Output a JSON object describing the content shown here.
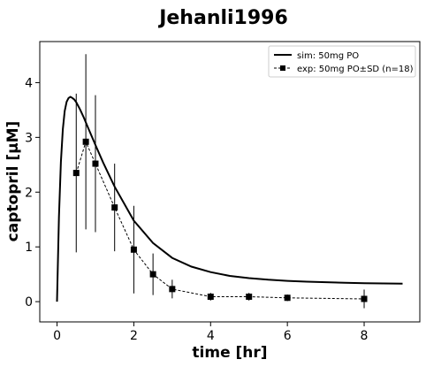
{
  "chart_data": {
    "type": "line",
    "title": "Jehanli1996",
    "xlabel": "time [hr]",
    "ylabel": "captopril [μM]",
    "xlim": [
      -0.45,
      9.45
    ],
    "ylim": [
      -0.37,
      4.75
    ],
    "xticks": [
      0,
      2,
      4,
      6,
      8
    ],
    "yticks": [
      0,
      1,
      2,
      3,
      4
    ],
    "grid": false,
    "legend_position": "top-right",
    "series": [
      {
        "name": "sim: 50mg PO",
        "style": "solid",
        "color": "#000000",
        "x": [
          0,
          0.05,
          0.1,
          0.15,
          0.2,
          0.25,
          0.3,
          0.35,
          0.4,
          0.45,
          0.5,
          0.6,
          0.7,
          0.8,
          1.0,
          1.2,
          1.5,
          2.0,
          2.5,
          3.0,
          3.5,
          4.0,
          4.5,
          5.0,
          5.5,
          6.0,
          6.5,
          7.0,
          7.5,
          8.0,
          8.5,
          9.0
        ],
        "y": [
          0.0,
          1.55,
          2.55,
          3.15,
          3.48,
          3.65,
          3.72,
          3.74,
          3.72,
          3.69,
          3.64,
          3.51,
          3.36,
          3.19,
          2.86,
          2.54,
          2.1,
          1.48,
          1.07,
          0.8,
          0.64,
          0.54,
          0.47,
          0.43,
          0.4,
          0.38,
          0.365,
          0.355,
          0.345,
          0.338,
          0.332,
          0.327
        ]
      },
      {
        "name": "exp: 50mg PO±SD (n=18)",
        "style": "dashed",
        "marker": "square",
        "color": "#000000",
        "x": [
          0.5,
          0.75,
          1.0,
          1.5,
          2.0,
          2.5,
          3.0,
          4.0,
          5.0,
          6.0,
          8.0
        ],
        "y": [
          2.35,
          2.92,
          2.52,
          1.72,
          0.95,
          0.5,
          0.23,
          0.09,
          0.09,
          0.07,
          0.05
        ],
        "sd": [
          1.45,
          1.6,
          1.25,
          0.8,
          0.8,
          0.38,
          0.17,
          0.07,
          0.07,
          0.06,
          0.17
        ]
      }
    ]
  }
}
